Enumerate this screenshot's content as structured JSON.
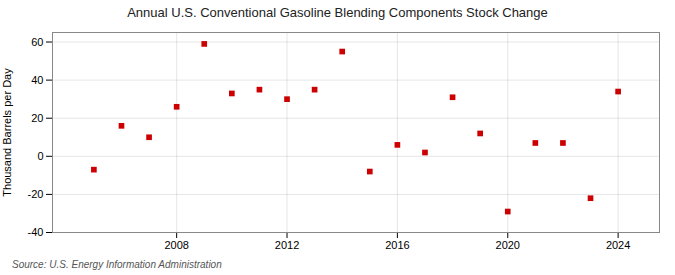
{
  "chart_data": {
    "type": "scatter",
    "title": "Annual U.S. Conventional Gasoline Blending Components Stock Change",
    "ylabel": "Thousand Barrels per Day",
    "annotations": [
      "Source: U.S. Energy Information Administration"
    ],
    "x": [
      2005,
      2006,
      2007,
      2008,
      2009,
      2010,
      2011,
      2012,
      2013,
      2014,
      2015,
      2016,
      2017,
      2018,
      2019,
      2020,
      2021,
      2022,
      2023,
      2024
    ],
    "values": [
      -7,
      16,
      10,
      26,
      59,
      33,
      35,
      30,
      35,
      55,
      -8,
      6,
      2,
      31,
      12,
      -29,
      7,
      7,
      -22,
      34
    ],
    "color": "#cc0000",
    "marker": "square",
    "xlim": [
      2003.5,
      2025.5
    ],
    "ylim": [
      -40,
      65
    ],
    "xticks": [
      2008,
      2012,
      2016,
      2020,
      2024
    ],
    "yticks": [
      -40,
      -20,
      0,
      20,
      40,
      60
    ],
    "grid": true
  }
}
